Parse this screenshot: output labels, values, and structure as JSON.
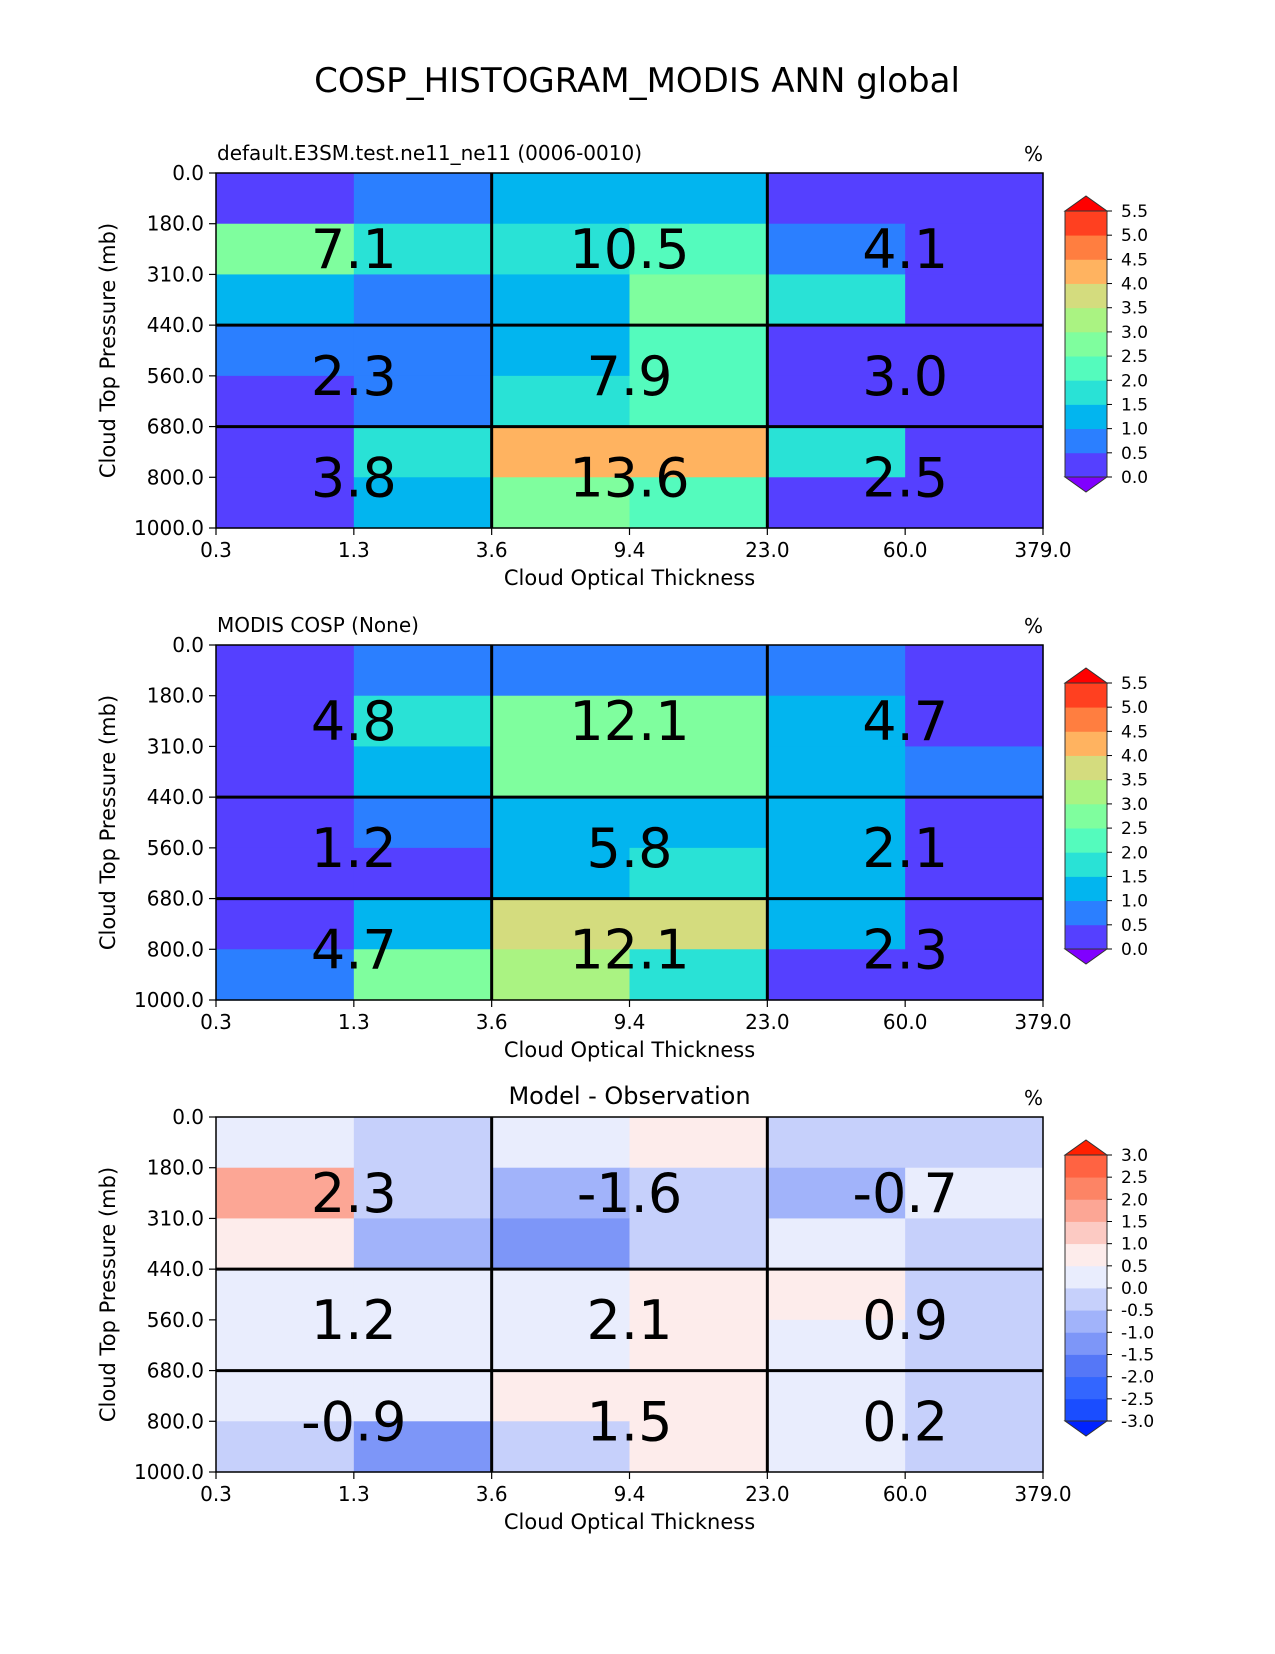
{
  "title": "COSP_HISTOGRAM_MODIS ANN global",
  "colors": {
    "rainbow": [
      "#8000ff",
      "#5540ff",
      "#2b7fff",
      "#02b5ef",
      "#29e2d6",
      "#54fbbd",
      "#7ffe9e",
      "#aaf382",
      "#d4dc7e",
      "#ffb360",
      "#ff7e40",
      "#ff4020",
      "#ff0000"
    ],
    "diverging": [
      "#0022ff",
      "#1a4dff",
      "#3366ff",
      "#5577f7",
      "#7d96f8",
      "#a1b3fa",
      "#c6d0fb",
      "#e9edfd",
      "#fdeceb",
      "#fccac3",
      "#fca695",
      "#fd8465",
      "#ff6342",
      "#ff3f1d",
      "#ff2000"
    ]
  },
  "chart_data": [
    {
      "type": "heatmap",
      "title_left": "default.E3SM.test.ne11_ne11 (0006-0010)",
      "title_center": "",
      "units": "%",
      "xlabel": "Cloud Optical Thickness",
      "ylabel": "Cloud Top Pressure (mb)",
      "xticks": [
        "0.3",
        "1.3",
        "3.6",
        "9.4",
        "23.0",
        "60.0",
        "379.0"
      ],
      "yticks": [
        "0.0",
        "180.0",
        "310.0",
        "440.0",
        "560.0",
        "680.0",
        "800.0",
        "1000.0"
      ],
      "colorbar": {
        "levels": [
          0.0,
          0.5,
          1.0,
          1.5,
          2.0,
          2.5,
          3.0,
          3.5,
          4.0,
          4.5,
          5.0,
          5.5
        ],
        "ticks": [
          "0.0",
          "0.5",
          "1.0",
          "1.5",
          "2.0",
          "2.5",
          "3.0",
          "3.5",
          "4.0",
          "4.5",
          "5.0",
          "5.5"
        ],
        "palette": "rainbow",
        "extend": "both"
      },
      "cells": [
        [
          0.3,
          0.8,
          1.3,
          1.3,
          0.3,
          0.3
        ],
        [
          2.7,
          1.9,
          1.9,
          2.1,
          0.8,
          0.3
        ],
        [
          1.3,
          0.8,
          1.3,
          2.7,
          1.9,
          0.3
        ],
        [
          0.8,
          0.8,
          1.3,
          2.1,
          0.3,
          0.3
        ],
        [
          0.3,
          0.8,
          1.9,
          2.1,
          0.3,
          0.3
        ],
        [
          0.3,
          1.9,
          4.2,
          4.2,
          1.9,
          0.3
        ],
        [
          0.3,
          1.3,
          2.7,
          2.1,
          0.3,
          0.3
        ]
      ],
      "block_labels": [
        [
          "7.1",
          "10.5",
          "4.1"
        ],
        [
          "2.3",
          "7.9",
          "3.0"
        ],
        [
          "3.8",
          "13.6",
          "2.5"
        ]
      ]
    },
    {
      "type": "heatmap",
      "title_left": "MODIS COSP (None)",
      "title_center": "",
      "units": "%",
      "xlabel": "Cloud Optical Thickness",
      "ylabel": "Cloud Top Pressure (mb)",
      "xticks": [
        "0.3",
        "1.3",
        "3.6",
        "9.4",
        "23.0",
        "60.0",
        "379.0"
      ],
      "yticks": [
        "0.0",
        "180.0",
        "310.0",
        "440.0",
        "560.0",
        "680.0",
        "800.0",
        "1000.0"
      ],
      "colorbar": {
        "levels": [
          0.0,
          0.5,
          1.0,
          1.5,
          2.0,
          2.5,
          3.0,
          3.5,
          4.0,
          4.5,
          5.0,
          5.5
        ],
        "ticks": [
          "0.0",
          "0.5",
          "1.0",
          "1.5",
          "2.0",
          "2.5",
          "3.0",
          "3.5",
          "4.0",
          "4.5",
          "5.0",
          "5.5"
        ],
        "palette": "rainbow",
        "extend": "both"
      },
      "cells": [
        [
          0.3,
          0.8,
          0.8,
          0.8,
          0.8,
          0.3
        ],
        [
          0.3,
          1.9,
          2.7,
          2.7,
          1.3,
          0.3
        ],
        [
          0.3,
          1.3,
          2.7,
          2.7,
          1.3,
          0.8
        ],
        [
          0.3,
          0.8,
          1.3,
          1.3,
          1.3,
          0.3
        ],
        [
          0.3,
          0.3,
          1.3,
          1.9,
          1.3,
          0.3
        ],
        [
          0.3,
          1.3,
          3.7,
          3.7,
          1.3,
          0.3
        ],
        [
          0.8,
          2.7,
          3.2,
          1.9,
          0.3,
          0.3
        ]
      ],
      "block_labels": [
        [
          "4.8",
          "12.1",
          "4.7"
        ],
        [
          "1.2",
          "5.8",
          "2.1"
        ],
        [
          "4.7",
          "12.1",
          "2.3"
        ]
      ]
    },
    {
      "type": "heatmap",
      "title_left": "",
      "title_center": "Model - Observation",
      "units": "%",
      "xlabel": "Cloud Optical Thickness",
      "ylabel": "Cloud Top Pressure (mb)",
      "xticks": [
        "0.3",
        "1.3",
        "3.6",
        "9.4",
        "23.0",
        "60.0",
        "379.0"
      ],
      "yticks": [
        "0.0",
        "180.0",
        "310.0",
        "440.0",
        "560.0",
        "680.0",
        "800.0",
        "1000.0"
      ],
      "colorbar": {
        "levels": [
          -3.0,
          -2.5,
          -2.0,
          -1.5,
          -1.0,
          -0.5,
          0.0,
          0.5,
          1.0,
          1.5,
          2.0,
          2.5,
          3.0
        ],
        "ticks": [
          "-3.0",
          "-2.5",
          "-2.0",
          "-1.5",
          "-1.0",
          "-0.5",
          "0.0",
          "0.5",
          "1.0",
          "1.5",
          "2.0",
          "2.5",
          "3.0"
        ],
        "palette": "diverging",
        "extend": "both"
      },
      "cells": [
        [
          0.2,
          -0.2,
          0.2,
          0.6,
          -0.2,
          -0.2
        ],
        [
          1.7,
          -0.2,
          -0.6,
          -0.2,
          -0.6,
          0.2
        ],
        [
          0.6,
          -0.6,
          -1.1,
          -0.2,
          0.2,
          -0.2
        ],
        [
          0.2,
          0.2,
          0.2,
          0.6,
          0.6,
          -0.2
        ],
        [
          0.2,
          0.2,
          0.2,
          0.6,
          0.2,
          -0.2
        ],
        [
          0.2,
          0.2,
          0.6,
          0.6,
          0.2,
          -0.2
        ],
        [
          -0.2,
          -1.1,
          -0.2,
          0.6,
          0.2,
          -0.2
        ]
      ],
      "block_labels": [
        [
          "2.3",
          "-1.6",
          "-0.7"
        ],
        [
          "1.2",
          "2.1",
          "0.9"
        ],
        [
          "-0.9",
          "1.5",
          "0.2"
        ]
      ]
    }
  ]
}
